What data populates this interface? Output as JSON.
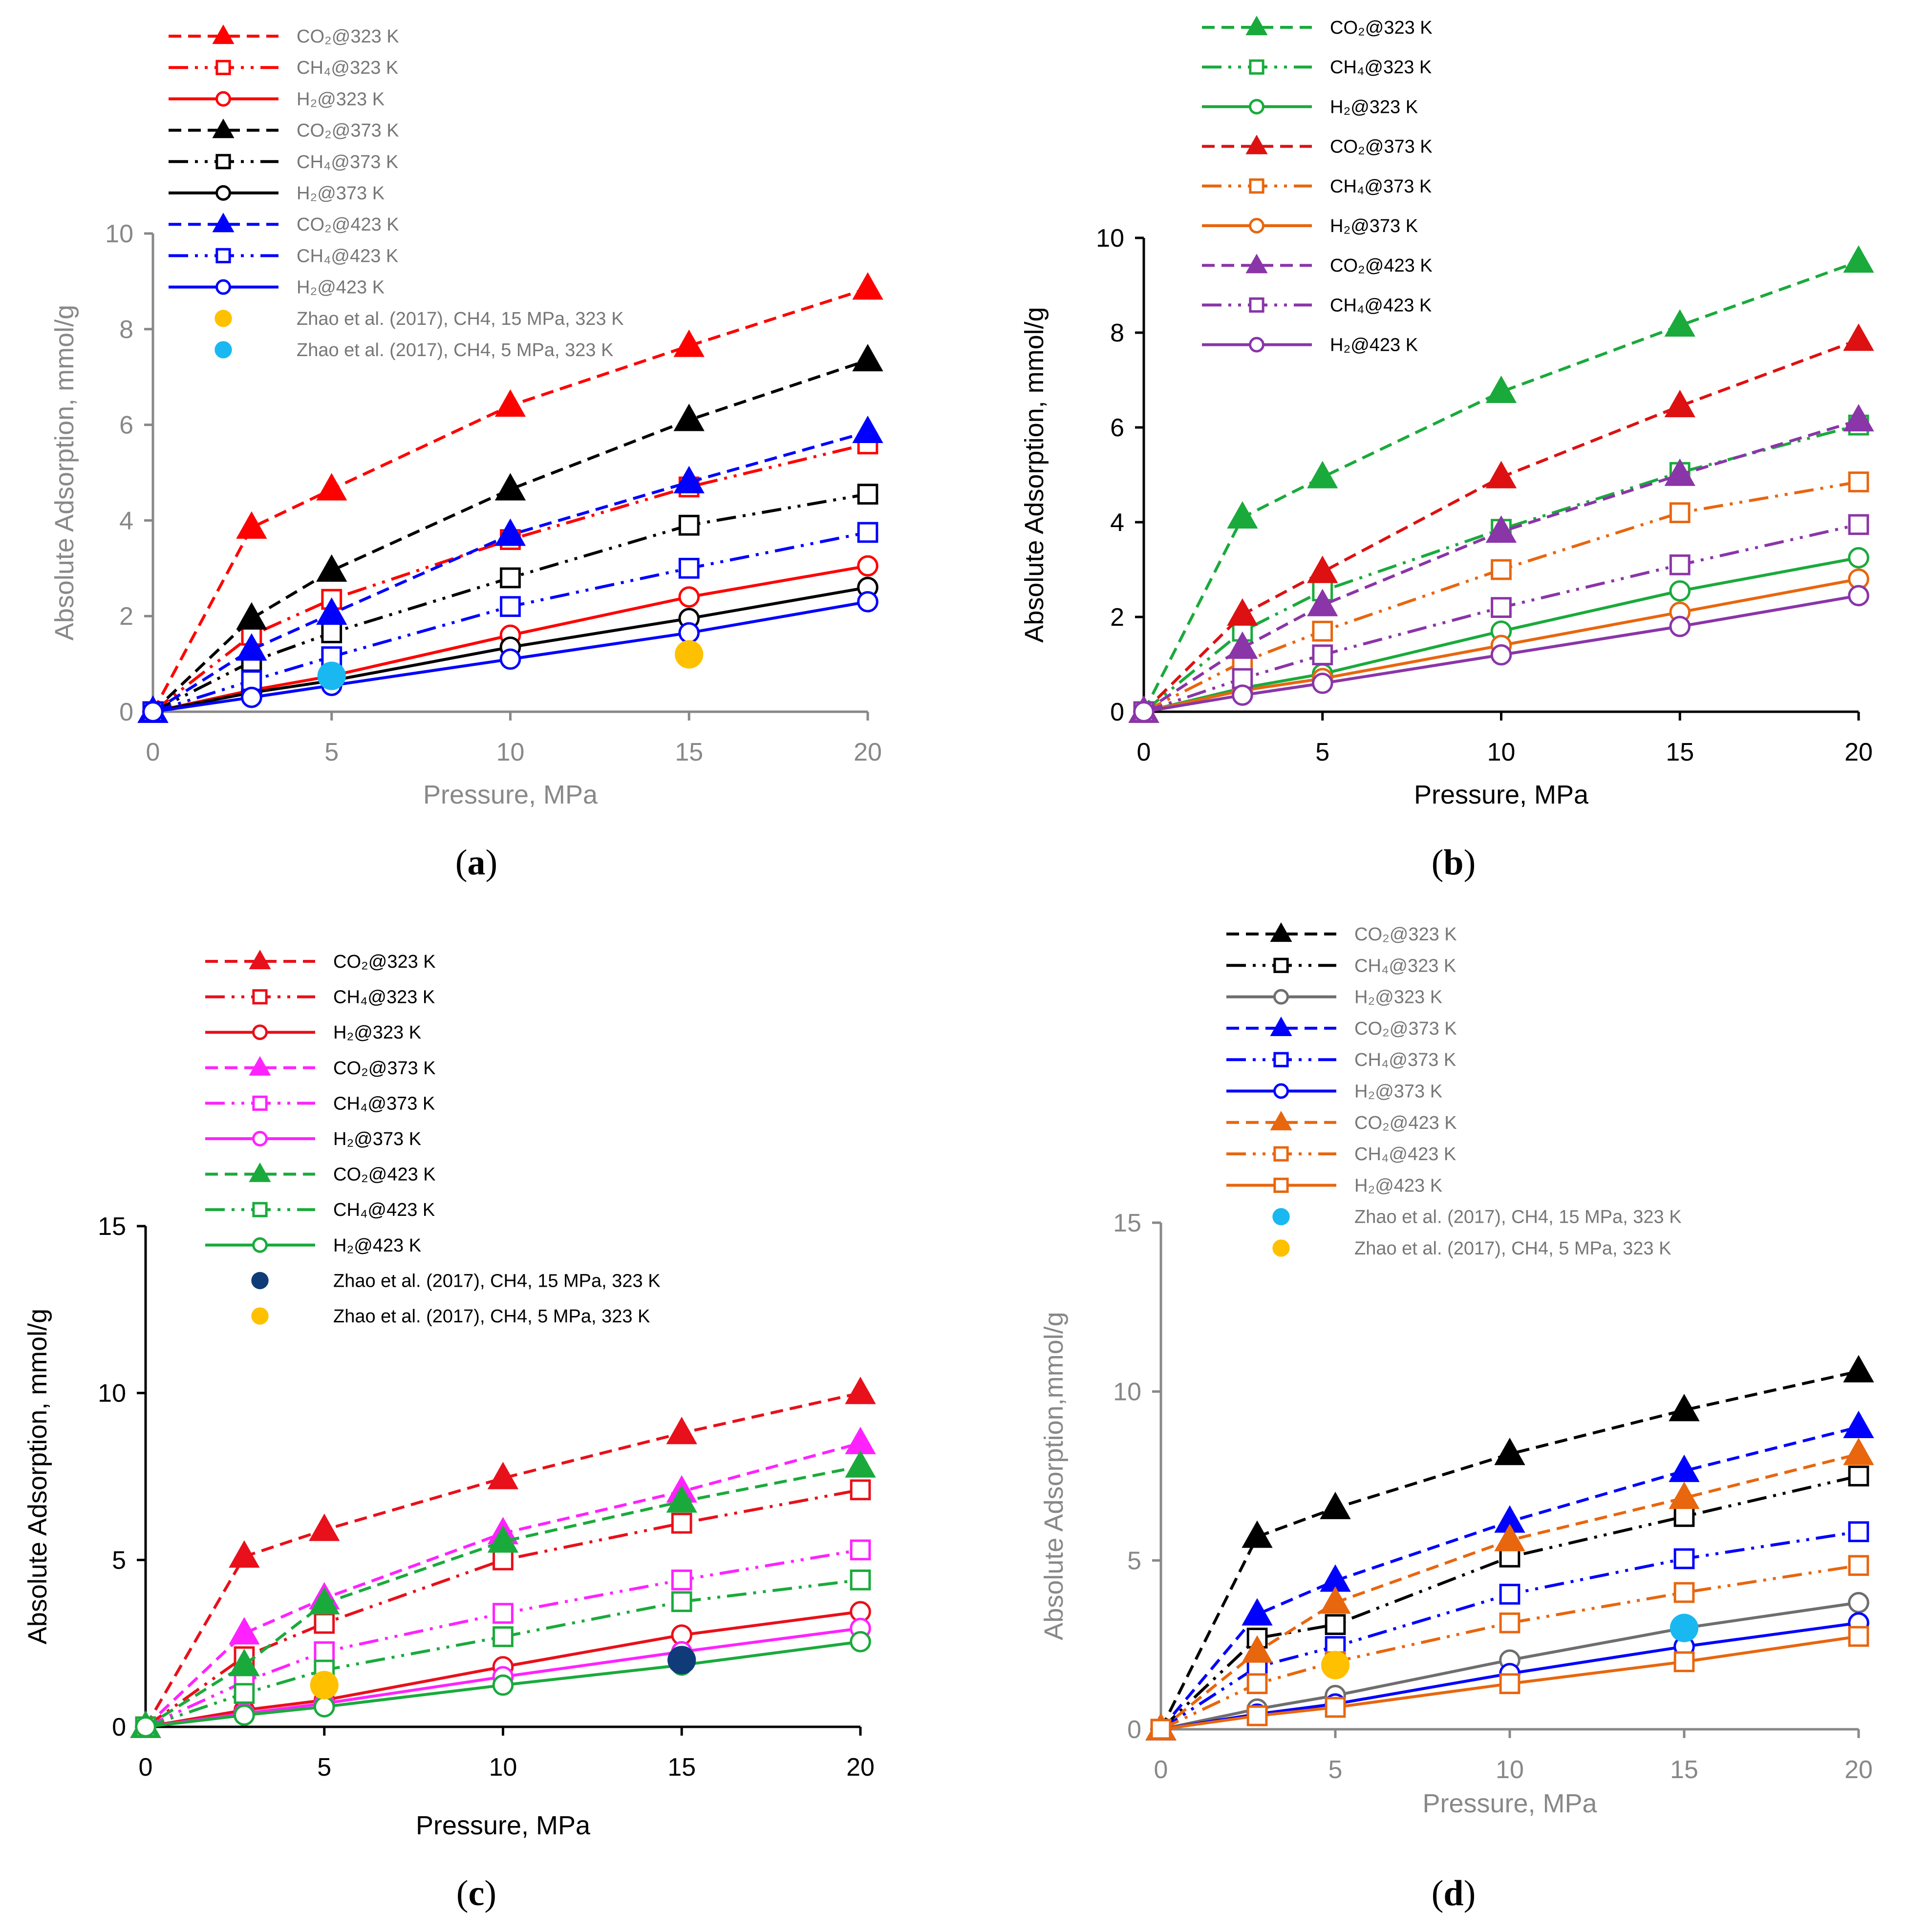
{
  "chart_data": [
    {
      "type": "line",
      "panel": "a",
      "caption_pre": "(",
      "caption_letter": "a",
      "caption_post": ")",
      "axis_color": "#888888",
      "xlabel": "Pressure, MPa",
      "ylabel": "Absolute Adsorption, mmol/g",
      "xlim": [
        0,
        20
      ],
      "xticks": [
        0,
        5,
        10,
        15,
        20
      ],
      "ylim": [
        0,
        10
      ],
      "yticks": [
        0,
        2,
        4,
        6,
        8,
        10
      ],
      "series": [
        {
          "name": "CO₂@323 K",
          "color": "#ff0000",
          "dash": "co2",
          "marker": "triangle",
          "x": [
            0,
            2.76,
            5,
            10,
            15,
            20
          ],
          "y": [
            0,
            3.85,
            4.65,
            6.4,
            7.65,
            8.85
          ]
        },
        {
          "name": "CH₄@323 K",
          "color": "#ff0000",
          "dash": "ch4",
          "marker": "square",
          "x": [
            0,
            2.76,
            5,
            10,
            15,
            20
          ],
          "y": [
            0,
            1.6,
            2.35,
            3.6,
            4.7,
            5.6
          ]
        },
        {
          "name": "H₂@323 K",
          "color": "#ff0000",
          "dash": "h2",
          "marker": "circle",
          "x": [
            0,
            2.76,
            5,
            10,
            15,
            20
          ],
          "y": [
            0,
            0.45,
            0.75,
            1.6,
            2.4,
            3.05
          ]
        },
        {
          "name": "CO₂@373 K",
          "color": "#000000",
          "dash": "co2",
          "marker": "triangle",
          "x": [
            0,
            2.76,
            5,
            10,
            15,
            20
          ],
          "y": [
            0,
            1.95,
            2.95,
            4.65,
            6.1,
            7.35
          ]
        },
        {
          "name": "CH₄@373 K",
          "color": "#000000",
          "dash": "ch4",
          "marker": "square",
          "x": [
            0,
            2.76,
            5,
            10,
            15,
            20
          ],
          "y": [
            0,
            1.05,
            1.65,
            2.8,
            3.9,
            4.55
          ]
        },
        {
          "name": "H₂@373 K",
          "color": "#000000",
          "dash": "h2",
          "marker": "circle",
          "x": [
            0,
            2.76,
            5,
            10,
            15,
            20
          ],
          "y": [
            0,
            0.4,
            0.65,
            1.35,
            1.95,
            2.6
          ]
        },
        {
          "name": "CO₂@423 K",
          "color": "#0000ff",
          "dash": "co2",
          "marker": "triangle",
          "x": [
            0,
            2.76,
            5,
            10,
            15,
            20
          ],
          "y": [
            0,
            1.3,
            2.05,
            3.7,
            4.8,
            5.85
          ]
        },
        {
          "name": "CH₄@423 K",
          "color": "#0000ff",
          "dash": "ch4",
          "marker": "square",
          "x": [
            0,
            2.76,
            5,
            10,
            15,
            20
          ],
          "y": [
            0,
            0.65,
            1.15,
            2.2,
            3.0,
            3.75
          ]
        },
        {
          "name": "H₂@423 K",
          "color": "#0000ff",
          "dash": "h2",
          "marker": "circle",
          "x": [
            0,
            2.76,
            5,
            10,
            15,
            20
          ],
          "y": [
            0,
            0.3,
            0.55,
            1.1,
            1.65,
            2.3
          ]
        },
        {
          "name": "Zhao et al. (2017), CH4, 15 MPa, 323 K",
          "color": "#ffc000",
          "dash": "none",
          "marker": "dot",
          "x": [
            15
          ],
          "y": [
            1.2
          ]
        },
        {
          "name": "Zhao et al. (2017), CH4, 5 MPa, 323 K",
          "color": "#1ab8f0",
          "dash": "none",
          "marker": "dot",
          "x": [
            5
          ],
          "y": [
            0.75
          ]
        }
      ]
    },
    {
      "type": "line",
      "panel": "b",
      "caption_pre": "(",
      "caption_letter": "b",
      "caption_post": ")",
      "axis_color": "#000000",
      "xlabel": "Pressure, MPa",
      "ylabel": "Absolute Adsorption, mmol/g",
      "xlim": [
        0,
        20
      ],
      "xticks": [
        0,
        5,
        10,
        15,
        20
      ],
      "ylim": [
        0,
        10
      ],
      "yticks": [
        0,
        2,
        4,
        6,
        8,
        10
      ],
      "series": [
        {
          "name": "CO₂@323 K",
          "color": "#1aaa3c",
          "dash": "co2",
          "marker": "triangle",
          "x": [
            0,
            2.76,
            5,
            10,
            15,
            20
          ],
          "y": [
            0,
            4.1,
            4.95,
            6.75,
            8.15,
            9.5
          ]
        },
        {
          "name": "CH₄@323 K",
          "color": "#1aaa3c",
          "dash": "ch4",
          "marker": "square",
          "x": [
            0,
            2.76,
            5,
            10,
            15,
            20
          ],
          "y": [
            0,
            1.7,
            2.55,
            3.85,
            5.05,
            6.05
          ]
        },
        {
          "name": "H₂@323 K",
          "color": "#1aaa3c",
          "dash": "h2",
          "marker": "circle",
          "x": [
            0,
            2.76,
            5,
            10,
            15,
            20
          ],
          "y": [
            0,
            0.5,
            0.8,
            1.7,
            2.55,
            3.25
          ]
        },
        {
          "name": "CO₂@373 K",
          "color": "#dd1111",
          "dash": "co2",
          "marker": "triangle",
          "x": [
            0,
            2.76,
            5,
            10,
            15,
            20
          ],
          "y": [
            0,
            2.05,
            2.95,
            4.95,
            6.45,
            7.85
          ]
        },
        {
          "name": "CH₄@373 K",
          "color": "#e8660e",
          "dash": "ch4",
          "marker": "square",
          "x": [
            0,
            2.76,
            5,
            10,
            15,
            20
          ],
          "y": [
            0,
            1.05,
            1.7,
            3.0,
            4.2,
            4.85
          ]
        },
        {
          "name": "H₂@373 K",
          "color": "#e8660e",
          "dash": "h2",
          "marker": "circle",
          "x": [
            0,
            2.76,
            5,
            10,
            15,
            20
          ],
          "y": [
            0,
            0.45,
            0.7,
            1.4,
            2.1,
            2.8
          ]
        },
        {
          "name": "CO₂@423 K",
          "color": "#8a35a8",
          "dash": "co2",
          "marker": "triangle",
          "x": [
            0,
            2.76,
            5,
            10,
            15,
            20
          ],
          "y": [
            0,
            1.35,
            2.25,
            3.8,
            5.0,
            6.15
          ]
        },
        {
          "name": "CH₄@423 K",
          "color": "#8a35a8",
          "dash": "ch4",
          "marker": "square",
          "x": [
            0,
            2.76,
            5,
            10,
            15,
            20
          ],
          "y": [
            0,
            0.7,
            1.2,
            2.2,
            3.1,
            3.95
          ]
        },
        {
          "name": "H₂@423 K",
          "color": "#8a35a8",
          "dash": "h2",
          "marker": "circle",
          "x": [
            0,
            2.76,
            5,
            10,
            15,
            20
          ],
          "y": [
            0,
            0.35,
            0.6,
            1.2,
            1.8,
            2.45
          ]
        }
      ]
    },
    {
      "type": "line",
      "panel": "c",
      "caption_pre": "(",
      "caption_letter": "c",
      "caption_post": ")",
      "axis_color": "#000000",
      "xlabel": "Pressure, MPa",
      "ylabel": "Absolute Adsorption, mmol/g",
      "xlim": [
        0,
        20
      ],
      "xticks": [
        0,
        5,
        10,
        15,
        20
      ],
      "ylim": [
        0,
        15
      ],
      "yticks": [
        0,
        5,
        10,
        15
      ],
      "series": [
        {
          "name": "CO₂@323 K",
          "color": "#e8101a",
          "dash": "co2",
          "marker": "triangle",
          "x": [
            0,
            2.76,
            5,
            10,
            15,
            20
          ],
          "y": [
            0,
            5.1,
            5.9,
            7.45,
            8.8,
            10.0
          ]
        },
        {
          "name": "CH₄@323 K",
          "color": "#e8101a",
          "dash": "ch4",
          "marker": "square",
          "x": [
            0,
            2.76,
            5,
            10,
            15,
            20
          ],
          "y": [
            0,
            2.1,
            3.1,
            5.0,
            6.1,
            7.1
          ]
        },
        {
          "name": "H₂@323 K",
          "color": "#e8101a",
          "dash": "h2",
          "marker": "circle",
          "x": [
            0,
            2.76,
            5,
            10,
            15,
            20
          ],
          "y": [
            0,
            0.5,
            0.8,
            1.8,
            2.75,
            3.45
          ]
        },
        {
          "name": "CO₂@373 K",
          "color": "#ff22ff",
          "dash": "co2",
          "marker": "triangle",
          "x": [
            0,
            2.76,
            5,
            10,
            15,
            20
          ],
          "y": [
            0,
            2.8,
            3.85,
            5.8,
            7.05,
            8.5
          ]
        },
        {
          "name": "CH₄@373 K",
          "color": "#ff22ff",
          "dash": "ch4",
          "marker": "square",
          "x": [
            0,
            2.76,
            5,
            10,
            15,
            20
          ],
          "y": [
            0,
            1.35,
            2.25,
            3.4,
            4.4,
            5.3
          ]
        },
        {
          "name": "H₂@373 K",
          "color": "#ff22ff",
          "dash": "h2",
          "marker": "circle",
          "x": [
            0,
            2.76,
            5,
            10,
            15,
            20
          ],
          "y": [
            0,
            0.4,
            0.7,
            1.5,
            2.25,
            2.95
          ]
        },
        {
          "name": "CO₂@423 K",
          "color": "#1aaa3c",
          "dash": "co2",
          "marker": "triangle",
          "x": [
            0,
            2.76,
            5,
            10,
            15,
            20
          ],
          "y": [
            0,
            1.85,
            3.7,
            5.55,
            6.75,
            7.8
          ]
        },
        {
          "name": "CH₄@423 K",
          "color": "#1aaa3c",
          "dash": "ch4",
          "marker": "square",
          "x": [
            0,
            2.76,
            5,
            10,
            15,
            20
          ],
          "y": [
            0,
            1.0,
            1.7,
            2.7,
            3.75,
            4.4
          ]
        },
        {
          "name": "H₂@423 K",
          "color": "#1aaa3c",
          "dash": "h2",
          "marker": "circle",
          "x": [
            0,
            2.76,
            5,
            10,
            15,
            20
          ],
          "y": [
            0,
            0.35,
            0.6,
            1.25,
            1.85,
            2.55
          ]
        },
        {
          "name": "Zhao et al. (2017), CH4, 15 MPa, 323 K",
          "color": "#0f3c78",
          "dash": "none",
          "marker": "dot",
          "x": [
            15
          ],
          "y": [
            2.0
          ]
        },
        {
          "name": "Zhao et al. (2017), CH4, 5 MPa, 323 K",
          "color": "#ffc000",
          "dash": "none",
          "marker": "dot",
          "x": [
            5
          ],
          "y": [
            1.25
          ]
        }
      ]
    },
    {
      "type": "line",
      "panel": "d",
      "caption_pre": "(",
      "caption_letter": "d",
      "caption_post": ")",
      "axis_color": "#888888",
      "xlabel": "Pressure, MPa",
      "ylabel": "Absolute Adsorption,mmol/g",
      "xlim": [
        0,
        20
      ],
      "xticks": [
        0,
        5,
        10,
        15,
        20
      ],
      "ylim": [
        0,
        15
      ],
      "yticks": [
        0,
        5,
        10,
        15
      ],
      "series": [
        {
          "name": "CO₂@323 K",
          "color": "#000000",
          "dash": "co2",
          "marker": "triangle",
          "x": [
            0,
            2.76,
            5,
            10,
            15,
            20
          ],
          "y": [
            0,
            5.7,
            6.55,
            8.15,
            9.45,
            10.6
          ]
        },
        {
          "name": "CH₄@323 K",
          "color": "#000000",
          "dash": "ch4",
          "marker": "square",
          "x": [
            0,
            2.76,
            5,
            10,
            15,
            20
          ],
          "y": [
            0,
            2.7,
            3.1,
            5.1,
            6.3,
            7.5
          ]
        },
        {
          "name": "H₂@323 K",
          "color": "#6e6e6e",
          "dash": "h2",
          "marker": "circle",
          "x": [
            0,
            2.76,
            5,
            10,
            15,
            20
          ],
          "y": [
            0,
            0.6,
            1.0,
            2.05,
            3.0,
            3.75
          ]
        },
        {
          "name": "CO₂@373 K",
          "color": "#0000ff",
          "dash": "co2",
          "marker": "triangle",
          "x": [
            0,
            2.76,
            5,
            10,
            15,
            20
          ],
          "y": [
            0,
            3.4,
            4.4,
            6.15,
            7.65,
            8.95
          ]
        },
        {
          "name": "CH₄@373 K",
          "color": "#0000ff",
          "dash": "ch4",
          "marker": "square",
          "x": [
            0,
            2.76,
            5,
            10,
            15,
            20
          ],
          "y": [
            0,
            1.85,
            2.45,
            4.0,
            5.05,
            5.85
          ]
        },
        {
          "name": "H₂@373 K",
          "color": "#0000ff",
          "dash": "h2",
          "marker": "circle",
          "x": [
            0,
            2.76,
            5,
            10,
            15,
            20
          ],
          "y": [
            0,
            0.45,
            0.75,
            1.65,
            2.45,
            3.15
          ]
        },
        {
          "name": "CO₂@423 K",
          "color": "#e8660e",
          "dash": "co2",
          "marker": "triangle",
          "x": [
            0,
            2.76,
            5,
            10,
            15,
            20
          ],
          "y": [
            0,
            2.3,
            3.75,
            5.6,
            6.85,
            8.15
          ]
        },
        {
          "name": "CH₄@423 K",
          "color": "#e8660e",
          "dash": "ch4",
          "marker": "square",
          "x": [
            0,
            2.76,
            5,
            10,
            15,
            20
          ],
          "y": [
            0,
            1.35,
            2.0,
            3.15,
            4.05,
            4.85
          ]
        },
        {
          "name": "H₂@423 K",
          "color": "#e8660e",
          "dash": "h2",
          "marker": "square",
          "x": [
            0,
            2.76,
            5,
            10,
            15,
            20
          ],
          "y": [
            0,
            0.4,
            0.65,
            1.35,
            2.0,
            2.75
          ]
        },
        {
          "name": "Zhao et al. (2017), CH4, 15 MPa, 323 K",
          "color": "#1ab8f0",
          "dash": "none",
          "marker": "dot",
          "x": [
            15
          ],
          "y": [
            3.0
          ]
        },
        {
          "name": "Zhao et al. (2017), CH4, 5 MPa, 323 K",
          "color": "#ffc000",
          "dash": "none",
          "marker": "dot",
          "x": [
            5
          ],
          "y": [
            1.9
          ]
        }
      ]
    }
  ]
}
